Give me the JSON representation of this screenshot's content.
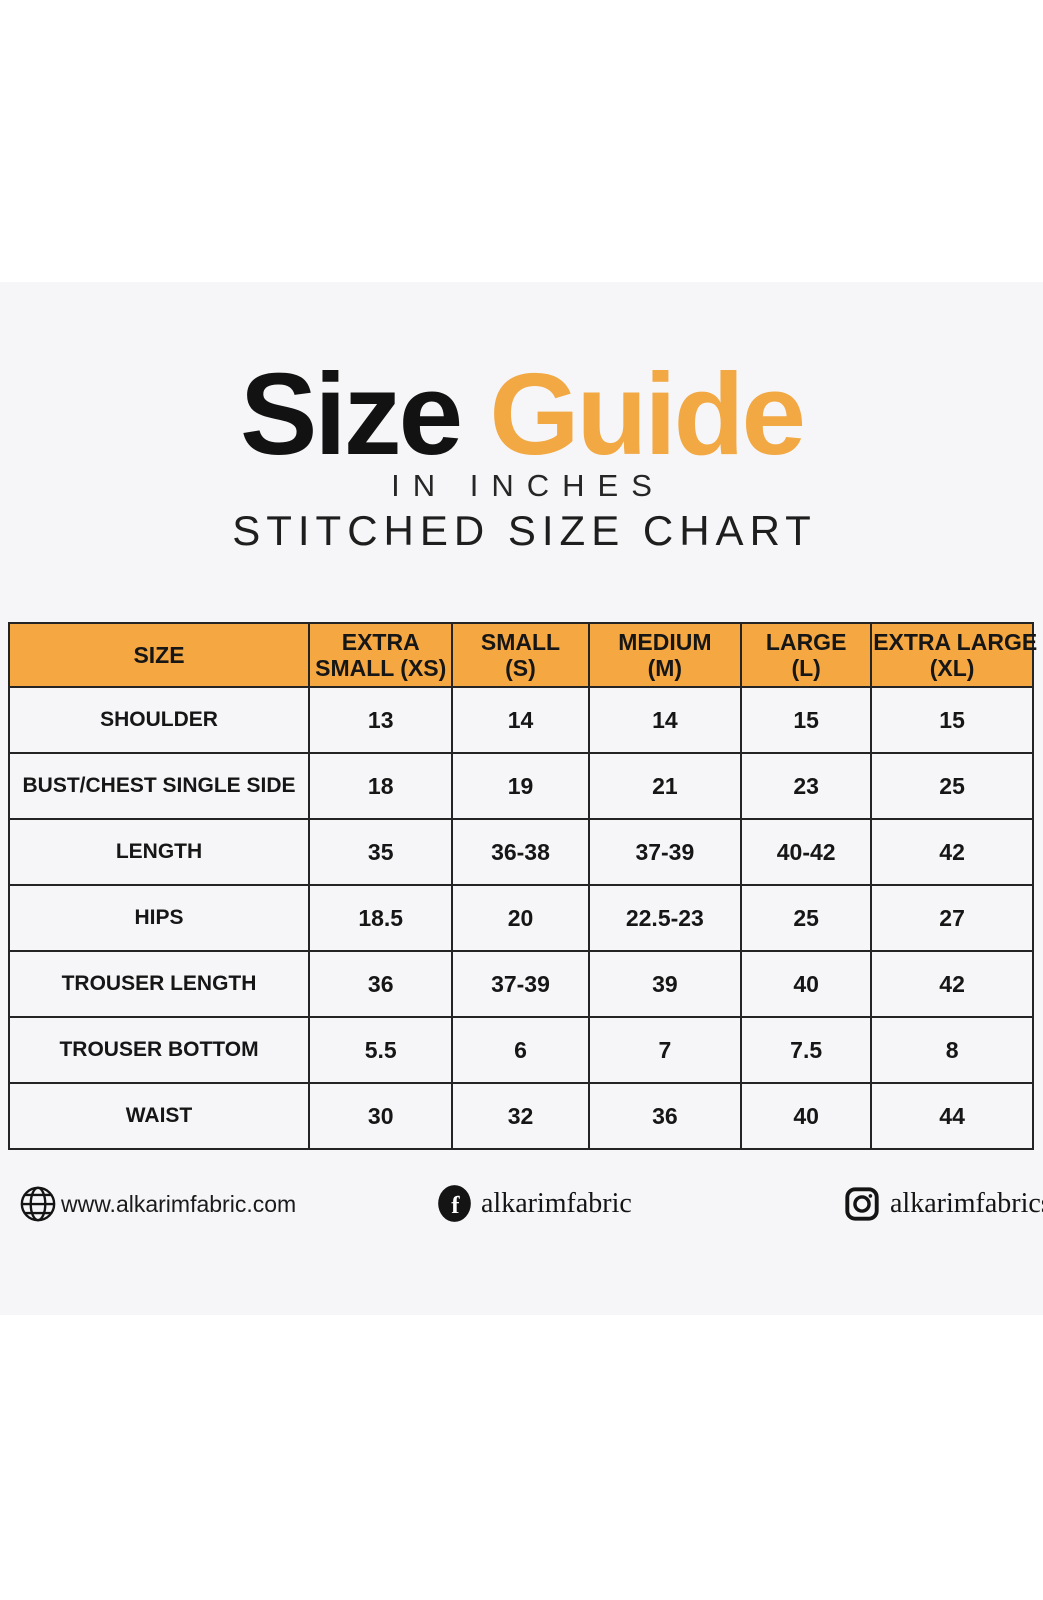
{
  "page": {
    "title_black": "Size",
    "title_orange": "Guide",
    "subtitle_line1": "IN INCHES",
    "subtitle_line2": "STITCHED SIZE CHART"
  },
  "colors": {
    "accent_orange": "#F2A843",
    "table_header_bg": "#F5A741",
    "band_bg": "#F6F6F8",
    "text_dark": "#1B1B1B",
    "table_border": "#242424"
  },
  "chart_data": {
    "type": "table",
    "title": "Size Guide in Inches — Stitched Size Chart",
    "columns": [
      "SIZE",
      "EXTRA SMALL (XS)",
      "SMALL (S)",
      "MEDIUM (M)",
      "LARGE (L)",
      "EXTRA LARGE (XL)"
    ],
    "column_header_lines": [
      [
        "SIZE"
      ],
      [
        "EXTRA",
        "SMALL (XS)"
      ],
      [
        "SMALL",
        "(S)"
      ],
      [
        "MEDIUM",
        "(M)"
      ],
      [
        "LARGE",
        "(L)"
      ],
      [
        "EXTRA LARGE",
        "(XL)"
      ]
    ],
    "rows": [
      {
        "label": "SHOULDER",
        "values": [
          "13",
          "14",
          "14",
          "15",
          "15"
        ]
      },
      {
        "label": "BUST/CHEST SINGLE SIDE",
        "values": [
          "18",
          "19",
          "21",
          "23",
          "25"
        ]
      },
      {
        "label": "LENGTH",
        "values": [
          "35",
          "36-38",
          "37-39",
          "40-42",
          "42"
        ]
      },
      {
        "label": "HIPS",
        "values": [
          "18.5",
          "20",
          "22.5-23",
          "25",
          "27"
        ]
      },
      {
        "label": "TROUSER LENGTH",
        "values": [
          "36",
          "37-39",
          "39",
          "40",
          "42"
        ]
      },
      {
        "label": "TROUSER BOTTOM",
        "values": [
          "5.5",
          "6",
          "7",
          "7.5",
          "8"
        ]
      },
      {
        "label": "WAIST",
        "values": [
          "30",
          "32",
          "36",
          "40",
          "44"
        ]
      }
    ]
  },
  "footer": {
    "website": {
      "icon": "globe-icon",
      "text": "www.alkarimfabric.com"
    },
    "facebook": {
      "icon": "facebook-icon",
      "text": "alkarimfabric"
    },
    "instagram": {
      "icon": "instagram-icon",
      "text": "alkarimfabrics"
    }
  }
}
